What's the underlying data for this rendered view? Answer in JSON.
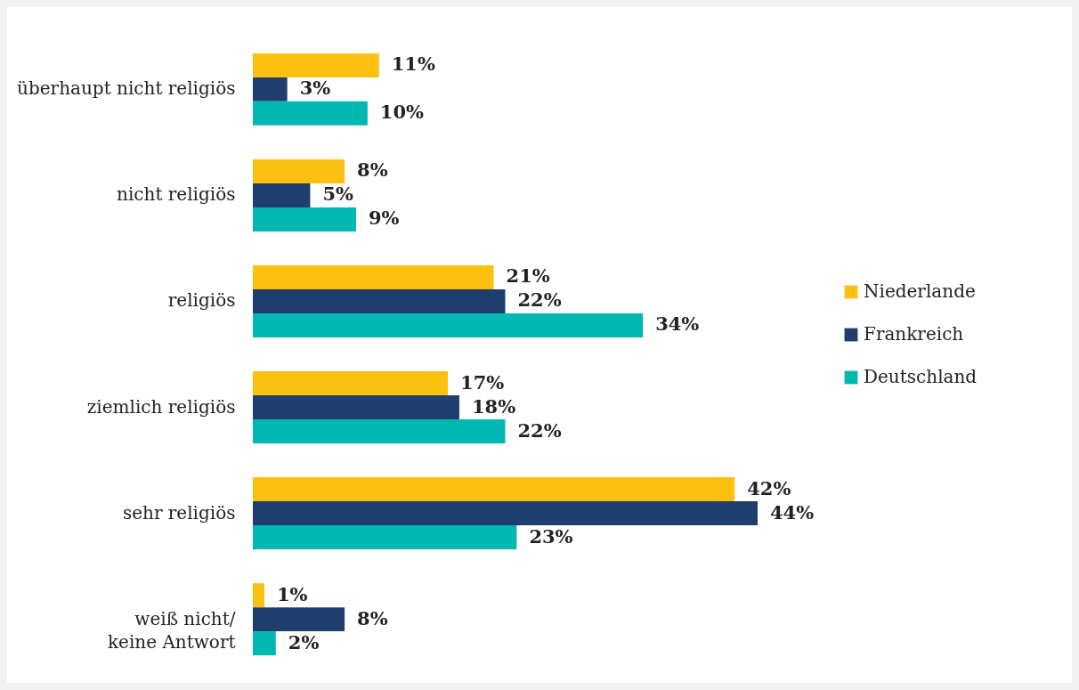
{
  "chart_data": {
    "type": "bar",
    "orientation": "horizontal",
    "legend": "right",
    "categories": [
      "überhaupt nicht religiös",
      "nicht religiös",
      "religiös",
      "ziemlich religiös",
      "sehr religiös",
      "weiß nicht/ keine Antwort"
    ],
    "series": [
      {
        "name": "Niederlande",
        "color": "#fcc010",
        "values": [
          11,
          8,
          21,
          17,
          42,
          1
        ],
        "value_labels": [
          "11%",
          "8%",
          "21%",
          "17%",
          "42%",
          "1%"
        ]
      },
      {
        "name": "Frankreich",
        "color": "#1f3d6d",
        "values": [
          3,
          5,
          22,
          18,
          44,
          8
        ],
        "value_labels": [
          "3%",
          "5%",
          "22%",
          "18%",
          "44%",
          "8%"
        ]
      },
      {
        "name": "Deutschland",
        "color": "#00b8b0",
        "values": [
          10,
          9,
          34,
          22,
          23,
          2
        ],
        "value_labels": [
          "10%",
          "9%",
          "34%",
          "22%",
          "23%",
          "2%"
        ]
      }
    ]
  }
}
